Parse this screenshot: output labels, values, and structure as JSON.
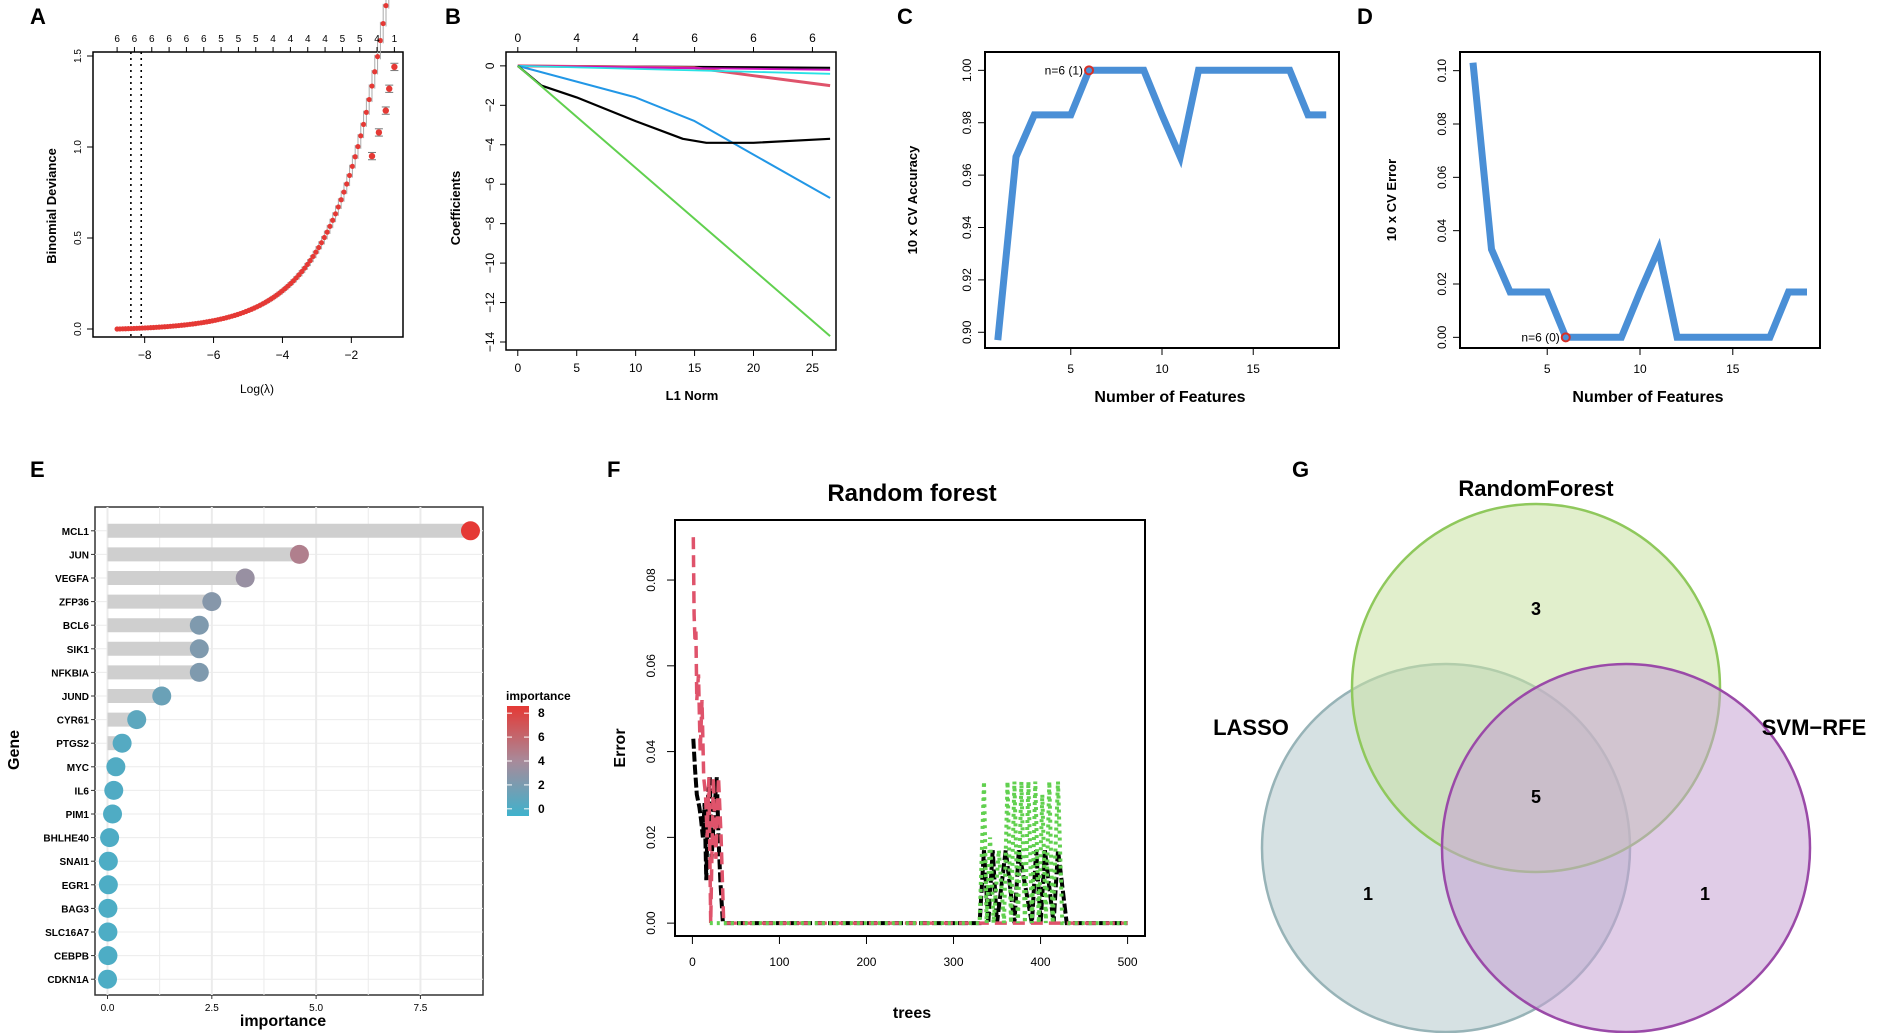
{
  "colors": {
    "lasso_red": "#e53935",
    "curve_blue": "#4a8fd6",
    "marker_red": "#d73027",
    "grey_bar": "#cfcfcf",
    "grey_band": "#ebebeb",
    "rf_pink": "#df536b",
    "rf_green": "#61d04f",
    "venn_green": "#c9e2a2",
    "venn_green_edge": "#8fc85c",
    "venn_purple": "#c7a2d3",
    "venn_purple_edge": "#9a4aa8",
    "venn_grey": "#b5c9cc",
    "venn_grey_edge": "#97b3b7"
  },
  "chart_data": [
    {
      "panel": "A",
      "type": "scatter",
      "subtype": "lasso_cv",
      "xlabel": "Log(λ)",
      "ylabel": "Binomial Deviance",
      "xlim": [
        -9.5,
        -0.5
      ],
      "ylim": [
        0,
        1.5
      ],
      "xticks": [
        -8,
        -6,
        -4,
        -2
      ],
      "yticks": [
        0.0,
        0.5,
        1.0,
        1.5
      ],
      "top_ticks": [
        "6",
        "6",
        "6",
        "6",
        "6",
        "6",
        "5",
        "5",
        "5",
        "4",
        "4",
        "4",
        "4",
        "5",
        "5",
        "4",
        "1"
      ],
      "vlines": [
        -8.4,
        -8.1
      ],
      "curve": {
        "min": -8.8,
        "max": -0.75,
        "scale": 0.01,
        "rate": 0.7
      },
      "points_highlight": [
        [
          -1.4,
          0.95
        ],
        [
          -1.2,
          1.08
        ],
        [
          -1.0,
          1.2
        ],
        [
          -0.9,
          1.32
        ],
        [
          -0.75,
          1.44
        ]
      ]
    },
    {
      "panel": "B",
      "type": "line",
      "subtype": "lasso_path",
      "xlabel": "L1 Norm",
      "ylabel": "Coefficients",
      "xlim": [
        -1,
        27
      ],
      "ylim": [
        -14,
        0.5
      ],
      "xticks": [
        0,
        5,
        10,
        15,
        20,
        25
      ],
      "yticks": [
        0,
        -2,
        -4,
        -6,
        -8,
        -10,
        -12,
        -14
      ],
      "top_ticks": [
        [
          "0",
          0
        ],
        [
          "4",
          5
        ],
        [
          "4",
          10
        ],
        [
          "6",
          15
        ],
        [
          "6",
          20
        ],
        [
          "6",
          25
        ]
      ],
      "series": [
        {
          "name": "s1",
          "color": "#000000",
          "width": 2.2,
          "points": [
            [
              0,
              0
            ],
            [
              26.5,
              -0.1
            ]
          ]
        },
        {
          "name": "s2",
          "color": "#df536b",
          "width": 3,
          "points": [
            [
              0,
              0
            ],
            [
              15,
              -0.1
            ],
            [
              20,
              -0.5
            ],
            [
              26.5,
              -1.0
            ]
          ]
        },
        {
          "name": "s3",
          "color": "#cd0bbc",
          "width": 1.8,
          "points": [
            [
              0,
              0
            ],
            [
              26.5,
              -0.2
            ]
          ]
        },
        {
          "name": "s4",
          "color": "#28e2e5",
          "width": 1.8,
          "points": [
            [
              0,
              0
            ],
            [
              26.5,
              -0.4
            ]
          ]
        },
        {
          "name": "s5",
          "color": "#2297e6",
          "width": 2,
          "points": [
            [
              0,
              0
            ],
            [
              5,
              -0.8
            ],
            [
              10,
              -1.6
            ],
            [
              15,
              -2.8
            ],
            [
              20,
              -4.5
            ],
            [
              26.5,
              -6.7
            ]
          ]
        },
        {
          "name": "s6",
          "color": "#000000",
          "width": 2.2,
          "points": [
            [
              0,
              0
            ],
            [
              2,
              -1.0
            ],
            [
              5,
              -1.6
            ],
            [
              10,
              -2.8
            ],
            [
              14,
              -3.7
            ],
            [
              16,
              -3.9
            ],
            [
              20,
              -3.9
            ],
            [
              26.5,
              -3.7
            ]
          ]
        },
        {
          "name": "s7",
          "color": "#61d04f",
          "width": 2,
          "points": [
            [
              0,
              0
            ],
            [
              26.5,
              -13.7
            ]
          ]
        }
      ]
    },
    {
      "panel": "C",
      "type": "line",
      "xlabel": "Number of Features",
      "ylabel": "10 x CV Accuracy",
      "xlim": [
        0.3,
        19.7
      ],
      "ylim": [
        0.894,
        1.007
      ],
      "xticks": [
        5,
        10,
        15
      ],
      "yticks": [
        0.9,
        0.92,
        0.94,
        0.96,
        0.98,
        1.0
      ],
      "x": [
        1,
        2,
        3,
        4,
        5,
        6,
        7,
        8,
        9,
        10,
        11,
        12,
        13,
        14,
        15,
        16,
        17,
        18,
        19
      ],
      "values": [
        0.897,
        0.967,
        0.983,
        0.983,
        0.983,
        1.0,
        1.0,
        1.0,
        1.0,
        0.983,
        0.967,
        1.0,
        1.0,
        1.0,
        1.0,
        1.0,
        1.0,
        0.983,
        0.983
      ],
      "marker": {
        "x": 6,
        "y": 1.0,
        "label": "n=6 (1)"
      }
    },
    {
      "panel": "D",
      "type": "line",
      "xlabel": "Number of Features",
      "ylabel": "10 x CV Error",
      "xlim": [
        0.3,
        19.7
      ],
      "ylim": [
        -0.004,
        0.107
      ],
      "xticks": [
        5,
        10,
        15
      ],
      "yticks": [
        0.0,
        0.02,
        0.04,
        0.06,
        0.08,
        0.1
      ],
      "x": [
        1,
        2,
        3,
        4,
        5,
        6,
        7,
        8,
        9,
        10,
        11,
        12,
        13,
        14,
        15,
        16,
        17,
        18,
        19
      ],
      "values": [
        0.103,
        0.033,
        0.017,
        0.017,
        0.017,
        0.0,
        0.0,
        0.0,
        0.0,
        0.017,
        0.033,
        0.0,
        0.0,
        0.0,
        0.0,
        0.0,
        0.0,
        0.017,
        0.017
      ],
      "marker": {
        "x": 6,
        "y": 0.0,
        "label": "n=6 (0)"
      }
    },
    {
      "panel": "E",
      "type": "bar",
      "subtype": "lollipop",
      "xlabel": "importance",
      "ylabel": "Gene",
      "xlim": [
        -0.3,
        9.0
      ],
      "xticks": [
        0.0,
        2.5,
        5.0,
        7.5
      ],
      "xtick_labels": [
        "0.0",
        "2.5",
        "5.0",
        "7.5"
      ],
      "categories": [
        "MCL1",
        "JUN",
        "VEGFA",
        "ZFP36",
        "BCL6",
        "SIK1",
        "NFKBIA",
        "JUND",
        "CYR61",
        "PTGS2",
        "MYC",
        "IL6",
        "PIM1",
        "BHLHE40",
        "SNAI1",
        "EGR1",
        "BAG3",
        "SLC16A7",
        "CEBPB",
        "CDKN1A"
      ],
      "values": [
        8.7,
        4.6,
        3.3,
        2.5,
        2.2,
        2.2,
        2.2,
        1.3,
        0.7,
        0.35,
        0.2,
        0.15,
        0.12,
        0.05,
        0.02,
        0.02,
        0.01,
        0.01,
        0.01,
        0.0
      ],
      "legend": {
        "title": "importance",
        "ticks": [
          "8",
          "6",
          "4",
          "2",
          "0"
        ],
        "tick_values": [
          8,
          6,
          4,
          2,
          0
        ],
        "min": -0.6,
        "max": 8.6
      }
    },
    {
      "panel": "F",
      "type": "line",
      "subtype": "random_forest_error",
      "title": "Random forest",
      "xlabel": "trees",
      "ylabel": "Error",
      "xlim": [
        -20,
        520
      ],
      "ylim": [
        -0.003,
        0.094
      ],
      "xticks": [
        0,
        100,
        200,
        300,
        400,
        500
      ],
      "yticks": [
        0.0,
        0.02,
        0.04,
        0.06,
        0.08
      ],
      "series": [
        {
          "name": "OOB",
          "color": "#000000",
          "dash": "10 3",
          "width": 4,
          "points": [
            [
              1,
              0.043
            ],
            [
              3,
              0.036
            ],
            [
              5,
              0.03
            ],
            [
              8,
              0.027
            ],
            [
              10,
              0.024
            ],
            [
              12,
              0.02
            ],
            [
              14,
              0.028
            ],
            [
              16,
              0.01
            ],
            [
              18,
              0.03
            ],
            [
              20,
              0.034
            ],
            [
              22,
              0.015
            ],
            [
              25,
              0.026
            ],
            [
              28,
              0.034
            ],
            [
              30,
              0.02
            ],
            [
              32,
              0.01
            ],
            [
              35,
              0.0
            ],
            [
              330,
              0.0
            ],
            [
              335,
              0.017
            ],
            [
              340,
              0.0
            ],
            [
              345,
              0.017
            ],
            [
              350,
              0.0
            ],
            [
              360,
              0.017
            ],
            [
              370,
              0.0
            ],
            [
              375,
              0.017
            ],
            [
              390,
              0.0
            ],
            [
              395,
              0.017
            ],
            [
              400,
              0.0
            ],
            [
              405,
              0.017
            ],
            [
              415,
              0.0
            ],
            [
              420,
              0.017
            ],
            [
              430,
              0.0
            ],
            [
              500,
              0.0
            ]
          ]
        },
        {
          "name": "class1",
          "color": "#df536b",
          "dash": "12 6",
          "width": 3.5,
          "points": [
            [
              1,
              0.09
            ],
            [
              2,
              0.072
            ],
            [
              3,
              0.066
            ],
            [
              4,
              0.068
            ],
            [
              5,
              0.052
            ],
            [
              7,
              0.058
            ],
            [
              9,
              0.04
            ],
            [
              11,
              0.052
            ],
            [
              13,
              0.034
            ],
            [
              15,
              0.03
            ],
            [
              17,
              0.02
            ],
            [
              19,
              0.034
            ],
            [
              21,
              0.0
            ],
            [
              24,
              0.034
            ],
            [
              27,
              0.015
            ],
            [
              30,
              0.034
            ],
            [
              33,
              0.02
            ],
            [
              36,
              0.0
            ],
            [
              500,
              0.0
            ]
          ]
        },
        {
          "name": "class2",
          "color": "#61d04f",
          "dash": "3 4",
          "width": 4,
          "points": [
            [
              20,
              0.0
            ],
            [
              330,
              0.0
            ],
            [
              335,
              0.033
            ],
            [
              338,
              0.0
            ],
            [
              342,
              0.02
            ],
            [
              346,
              0.0
            ],
            [
              352,
              0.017
            ],
            [
              358,
              0.0
            ],
            [
              362,
              0.033
            ],
            [
              366,
              0.0
            ],
            [
              370,
              0.033
            ],
            [
              374,
              0.0
            ],
            [
              378,
              0.033
            ],
            [
              382,
              0.0
            ],
            [
              386,
              0.033
            ],
            [
              390,
              0.0
            ],
            [
              394,
              0.033
            ],
            [
              398,
              0.0
            ],
            [
              402,
              0.03
            ],
            [
              406,
              0.0
            ],
            [
              410,
              0.033
            ],
            [
              414,
              0.0
            ],
            [
              420,
              0.033
            ],
            [
              425,
              0.0
            ],
            [
              500,
              0.0
            ]
          ]
        }
      ]
    },
    {
      "panel": "G",
      "type": "venn",
      "sets": [
        "RandomForest",
        "LASSO",
        "SVM−RFE"
      ],
      "counts": {
        "RandomForest_only": "3",
        "LASSO_only": "1",
        "SVM_only": "1",
        "all_three": "5"
      }
    }
  ],
  "panel_letters": [
    "A",
    "B",
    "C",
    "D",
    "E",
    "F",
    "G"
  ]
}
